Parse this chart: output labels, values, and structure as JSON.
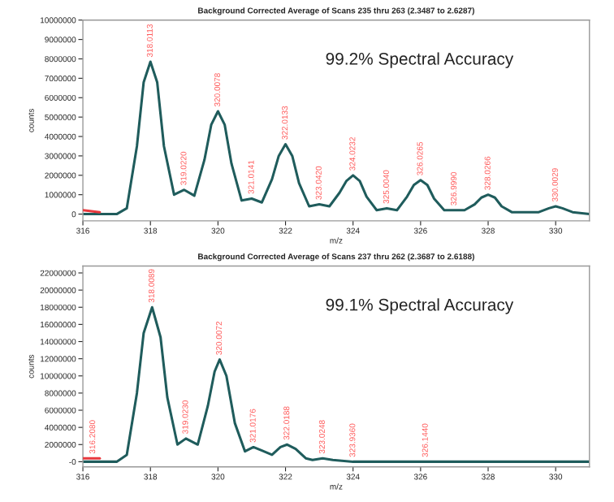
{
  "chart_data": [
    {
      "type": "line",
      "title": "Background Corrected Average of Scans 235 thru 263 (2.3487 to 2.6287)",
      "xlabel": "m/z",
      "ylabel": "counts",
      "x": [
        316.0,
        316.5,
        317.0,
        317.3,
        317.6,
        317.8,
        318.0,
        318.2,
        318.4,
        318.7,
        319.0,
        319.3,
        319.6,
        319.8,
        320.0,
        320.2,
        320.4,
        320.7,
        321.0,
        321.3,
        321.6,
        321.8,
        322.0,
        322.2,
        322.4,
        322.7,
        323.0,
        323.3,
        323.6,
        323.8,
        324.0,
        324.2,
        324.4,
        324.7,
        325.0,
        325.3,
        325.6,
        325.8,
        326.0,
        326.2,
        326.4,
        326.7,
        327.0,
        327.3,
        327.6,
        327.8,
        328.0,
        328.2,
        328.4,
        328.7,
        329.0,
        329.5,
        329.8,
        330.0,
        330.2,
        330.5,
        331.0
      ],
      "series": [
        {
          "color": "#1f5c5c",
          "values": [
            0,
            0,
            0,
            300000,
            3500000,
            6800000,
            7850000,
            6800000,
            3500000,
            1000000,
            1250000,
            950000,
            2800000,
            4600000,
            5300000,
            4600000,
            2600000,
            700000,
            800000,
            600000,
            1800000,
            3000000,
            3600000,
            3000000,
            1600000,
            400000,
            500000,
            400000,
            1100000,
            1700000,
            2000000,
            1700000,
            900000,
            200000,
            300000,
            200000,
            900000,
            1500000,
            1750000,
            1500000,
            800000,
            200000,
            200000,
            200000,
            500000,
            850000,
            1000000,
            850000,
            400000,
            100000,
            100000,
            100000,
            300000,
            400000,
            300000,
            100000,
            0
          ]
        },
        {
          "color": "#e8383d",
          "values": [
            200000,
            100000,
            null,
            null,
            null,
            null,
            null,
            null,
            null,
            null,
            null,
            null,
            null,
            null,
            null,
            null,
            null,
            null,
            null,
            null,
            null,
            null,
            null,
            null,
            null,
            null,
            null,
            null,
            null,
            null,
            null,
            null,
            null,
            null,
            null,
            null,
            null,
            null,
            null,
            null,
            null,
            null,
            null,
            null,
            null,
            null,
            null,
            null,
            null,
            null,
            null,
            null,
            null,
            null,
            null,
            null,
            null
          ]
        }
      ],
      "xlim": [
        316,
        331
      ],
      "xticks": [
        316,
        318,
        320,
        322,
        324,
        326,
        328,
        330
      ],
      "ylim": [
        -350000,
        10000000
      ],
      "yticks": [
        {
          "value": 0,
          "label": "0"
        },
        1000000,
        2000000,
        3000000,
        4000000,
        5000000,
        6000000,
        7000000,
        8000000,
        9000000,
        10000000
      ],
      "grid": false,
      "legend": false,
      "annotations": [
        "99.2% Spectral Accuracy",
        {
          "text": "318.0113",
          "x": 318.0,
          "y": 7850000
        },
        {
          "text": "319.0220",
          "x": 319.0,
          "y": 1250000
        },
        {
          "text": "320.0078",
          "x": 320.0,
          "y": 5300000
        },
        {
          "text": "321.0141",
          "x": 321.0,
          "y": 800000
        },
        {
          "text": "322.0133",
          "x": 322.0,
          "y": 3600000
        },
        {
          "text": "323.0420",
          "x": 323.0,
          "y": 500000
        },
        {
          "text": "324.0232",
          "x": 324.0,
          "y": 2000000
        },
        {
          "text": "325.0040",
          "x": 325.0,
          "y": 300000
        },
        {
          "text": "326.0265",
          "x": 326.0,
          "y": 1750000
        },
        {
          "text": "326.9990",
          "x": 327.0,
          "y": 200000
        },
        {
          "text": "328.0266",
          "x": 328.0,
          "y": 1000000
        },
        {
          "text": "330.0029",
          "x": 330.0,
          "y": 400000
        }
      ]
    },
    {
      "type": "line",
      "title": "Background Corrected Average of Scans 237 thru 262 (2.3687 to 2.6188)",
      "xlabel": "m/z",
      "ylabel": "counts",
      "x": [
        316.0,
        316.5,
        317.0,
        317.3,
        317.6,
        317.8,
        318.05,
        318.3,
        318.5,
        318.8,
        319.05,
        319.4,
        319.7,
        319.9,
        320.05,
        320.25,
        320.5,
        320.8,
        321.05,
        321.3,
        321.6,
        321.85,
        322.05,
        322.3,
        322.6,
        322.8,
        323.1,
        323.4,
        324.0,
        325.0,
        326.0,
        327.0,
        328.0,
        329.0,
        330.0,
        331.0
      ],
      "series": [
        {
          "color": "#1f5c5c",
          "values": [
            0,
            0,
            0,
            800000,
            8000000,
            15000000,
            18000000,
            14500000,
            7500000,
            2000000,
            2700000,
            2000000,
            6500000,
            10500000,
            11900000,
            10000000,
            4500000,
            1200000,
            1700000,
            1300000,
            800000,
            1700000,
            2000000,
            1500000,
            400000,
            200000,
            400000,
            200000,
            0,
            0,
            0,
            0,
            0,
            0,
            0,
            0
          ]
        },
        {
          "color": "#e8383d",
          "values": [
            400000,
            400000,
            null,
            null,
            null,
            null,
            null,
            null,
            null,
            null,
            null,
            null,
            null,
            null,
            null,
            null,
            null,
            null,
            null,
            null,
            null,
            null,
            null,
            null,
            null,
            null,
            null,
            null,
            null,
            null,
            null,
            null,
            null,
            null,
            null,
            null
          ]
        }
      ],
      "xlim": [
        316,
        331
      ],
      "xticks": [
        316,
        318,
        320,
        322,
        324,
        326,
        328,
        330
      ],
      "ylim": [
        -600000,
        22800000
      ],
      "yticks": [
        {
          "value": 0,
          "label": "-0"
        },
        2000000,
        4000000,
        6000000,
        8000000,
        10000000,
        12000000,
        14000000,
        16000000,
        18000000,
        20000000,
        22000000
      ],
      "grid": false,
      "legend": false,
      "annotations": [
        "99.1% Spectral Accuracy",
        {
          "text": "316.2080",
          "x": 316.3,
          "y": 400000
        },
        {
          "text": "318.0089",
          "x": 318.05,
          "y": 18000000
        },
        {
          "text": "319.0230",
          "x": 319.05,
          "y": 2700000
        },
        {
          "text": "320.0072",
          "x": 320.05,
          "y": 11900000
        },
        {
          "text": "321.0176",
          "x": 321.05,
          "y": 1700000
        },
        {
          "text": "322.0188",
          "x": 322.05,
          "y": 2000000
        },
        {
          "text": "323.0248",
          "x": 323.1,
          "y": 400000
        },
        {
          "text": "323.9360",
          "x": 324.0,
          "y": 0
        },
        {
          "text": "326.1440",
          "x": 326.15,
          "y": 0
        }
      ]
    }
  ]
}
